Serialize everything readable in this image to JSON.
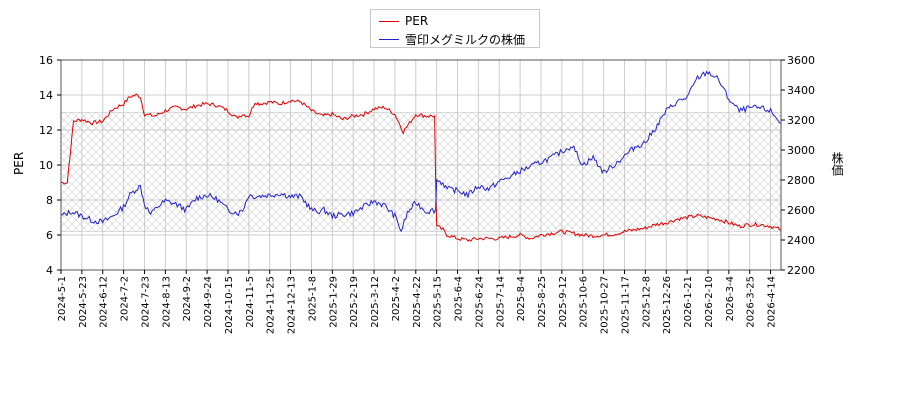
{
  "legend": {
    "per_label": "PER",
    "price_label": "雪印メグミルクの株価"
  },
  "axes": {
    "left_title": "PER",
    "right_title": "株価"
  },
  "colors": {
    "per": "#dd0000",
    "price": "#2222cc",
    "grid": "#cccccc",
    "hatch": "#bbbbbb"
  },
  "chart_data": {
    "type": "line",
    "x_tick_labels": [
      "2024-5-1",
      "2024-5-23",
      "2024-6-12",
      "2024-7-2",
      "2024-7-23",
      "2024-8-13",
      "2024-9-2",
      "2024-9-24",
      "2024-10-15",
      "2024-11-5",
      "2024-11-25",
      "2024-12-13",
      "2025-1-8",
      "2025-1-29",
      "2025-2-19",
      "2025-3-12",
      "2025-4-2",
      "2025-4-22",
      "2025-5-15",
      "2025-6-4",
      "2025-6-24",
      "2025-7-14",
      "2025-8-4",
      "2025-8-25",
      "2025-9-12",
      "2025-10-6",
      "2025-10-27",
      "2025-11-17",
      "2025-12-8",
      "2025-12-26",
      "2026-1-21",
      "2026-2-10",
      "2026-3-4",
      "2026-3-25",
      "2026-4-14"
    ],
    "left_axis": {
      "ticks": [
        4,
        6,
        8,
        10,
        12,
        14,
        16
      ],
      "ylim": [
        4,
        16
      ]
    },
    "right_axis": {
      "ticks": [
        2200,
        2400,
        2600,
        2800,
        3000,
        3200,
        3400,
        3600
      ],
      "ylim": [
        2200,
        3600
      ]
    },
    "band": {
      "axis": "left",
      "from": 6.2,
      "to": 13.0
    },
    "series": [
      {
        "name": "PER",
        "axis": "left",
        "anchors": [
          [
            0,
            9.0
          ],
          [
            0.3,
            9.0
          ],
          [
            0.6,
            12.5
          ],
          [
            1,
            12.6
          ],
          [
            1.5,
            12.4
          ],
          [
            2,
            12.5
          ],
          [
            2.5,
            13.2
          ],
          [
            3,
            13.5
          ],
          [
            3.3,
            13.9
          ],
          [
            3.6,
            14.0
          ],
          [
            3.8,
            13.9
          ],
          [
            4,
            12.9
          ],
          [
            4.5,
            12.8
          ],
          [
            5,
            13.1
          ],
          [
            5.5,
            13.3
          ],
          [
            6,
            13.2
          ],
          [
            6.5,
            13.4
          ],
          [
            7,
            13.5
          ],
          [
            7.5,
            13.4
          ],
          [
            8,
            13.1
          ],
          [
            8.4,
            12.7
          ],
          [
            8.7,
            12.9
          ],
          [
            9,
            12.8
          ],
          [
            9.3,
            13.6
          ],
          [
            9.5,
            13.5
          ],
          [
            10,
            13.6
          ],
          [
            10.5,
            13.5
          ],
          [
            11,
            13.7
          ],
          [
            11.5,
            13.6
          ],
          [
            12,
            13.1
          ],
          [
            12.5,
            12.8
          ],
          [
            13,
            12.9
          ],
          [
            13.5,
            12.6
          ],
          [
            14,
            12.8
          ],
          [
            14.5,
            12.9
          ],
          [
            15,
            13.2
          ],
          [
            15.5,
            13.3
          ],
          [
            16,
            12.9
          ],
          [
            16.4,
            11.9
          ],
          [
            16.7,
            12.4
          ],
          [
            17,
            12.9
          ],
          [
            17.5,
            12.8
          ],
          [
            17.9,
            12.8
          ],
          [
            17.95,
            9.2
          ],
          [
            18,
            6.5
          ],
          [
            18.3,
            6.3
          ],
          [
            18.5,
            6.0
          ],
          [
            19,
            5.8
          ],
          [
            19.5,
            5.7
          ],
          [
            20,
            5.8
          ],
          [
            20.5,
            5.8
          ],
          [
            21,
            5.8
          ],
          [
            21.5,
            5.9
          ],
          [
            22,
            6.0
          ],
          [
            22.5,
            5.8
          ],
          [
            23,
            6.0
          ],
          [
            23.5,
            6.1
          ],
          [
            24,
            6.2
          ],
          [
            24.5,
            6.1
          ],
          [
            25,
            6.0
          ],
          [
            25.5,
            5.95
          ],
          [
            26,
            6.0
          ],
          [
            26.5,
            6.05
          ],
          [
            27,
            6.2
          ],
          [
            27.5,
            6.3
          ],
          [
            28,
            6.4
          ],
          [
            28.5,
            6.6
          ],
          [
            29,
            6.7
          ],
          [
            29.5,
            6.9
          ],
          [
            30,
            7.0
          ],
          [
            30.5,
            7.1
          ],
          [
            31,
            7.0
          ],
          [
            31.5,
            6.9
          ],
          [
            32,
            6.7
          ],
          [
            32.5,
            6.5
          ],
          [
            33,
            6.6
          ],
          [
            33.5,
            6.6
          ],
          [
            34,
            6.5
          ],
          [
            34.5,
            6.3
          ]
        ]
      },
      {
        "name": "雪印メグミルクの株価",
        "axis": "right",
        "anchors": [
          [
            0,
            2560
          ],
          [
            0.5,
            2590
          ],
          [
            1,
            2560
          ],
          [
            1.5,
            2530
          ],
          [
            2,
            2520
          ],
          [
            2.5,
            2560
          ],
          [
            3,
            2620
          ],
          [
            3.3,
            2700
          ],
          [
            3.6,
            2740
          ],
          [
            3.8,
            2760
          ],
          [
            4,
            2640
          ],
          [
            4.3,
            2570
          ],
          [
            4.6,
            2620
          ],
          [
            5,
            2660
          ],
          [
            5.5,
            2640
          ],
          [
            6,
            2600
          ],
          [
            6.5,
            2680
          ],
          [
            7,
            2700
          ],
          [
            7.5,
            2670
          ],
          [
            8,
            2600
          ],
          [
            8.5,
            2580
          ],
          [
            8.7,
            2600
          ],
          [
            9,
            2700
          ],
          [
            9.3,
            2690
          ],
          [
            10,
            2700
          ],
          [
            10.5,
            2710
          ],
          [
            11,
            2690
          ],
          [
            11.5,
            2690
          ],
          [
            12,
            2600
          ],
          [
            12.3,
            2590
          ],
          [
            12.6,
            2600
          ],
          [
            13,
            2560
          ],
          [
            13.5,
            2570
          ],
          [
            14,
            2580
          ],
          [
            14.5,
            2620
          ],
          [
            15,
            2660
          ],
          [
            15.5,
            2630
          ],
          [
            16,
            2560
          ],
          [
            16.3,
            2460
          ],
          [
            16.6,
            2580
          ],
          [
            17,
            2650
          ],
          [
            17.5,
            2590
          ],
          [
            17.95,
            2600
          ],
          [
            18,
            2800
          ],
          [
            18.3,
            2780
          ],
          [
            18.5,
            2740
          ],
          [
            19,
            2730
          ],
          [
            19.5,
            2700
          ],
          [
            20,
            2760
          ],
          [
            20.5,
            2740
          ],
          [
            21,
            2790
          ],
          [
            21.5,
            2820
          ],
          [
            22,
            2860
          ],
          [
            22.5,
            2890
          ],
          [
            23,
            2920
          ],
          [
            23.5,
            2950
          ],
          [
            24,
            2990
          ],
          [
            24.5,
            3030
          ],
          [
            25,
            2900
          ],
          [
            25.5,
            2950
          ],
          [
            26,
            2850
          ],
          [
            26.5,
            2900
          ],
          [
            27,
            2960
          ],
          [
            27.5,
            3020
          ],
          [
            28,
            3050
          ],
          [
            28.5,
            3150
          ],
          [
            29,
            3260
          ],
          [
            29.5,
            3320
          ],
          [
            30,
            3350
          ],
          [
            30.5,
            3480
          ],
          [
            31,
            3520
          ],
          [
            31.5,
            3470
          ],
          [
            32,
            3340
          ],
          [
            32.5,
            3260
          ],
          [
            33,
            3280
          ],
          [
            33.5,
            3280
          ],
          [
            34,
            3260
          ],
          [
            34.5,
            3180
          ]
        ]
      }
    ]
  }
}
